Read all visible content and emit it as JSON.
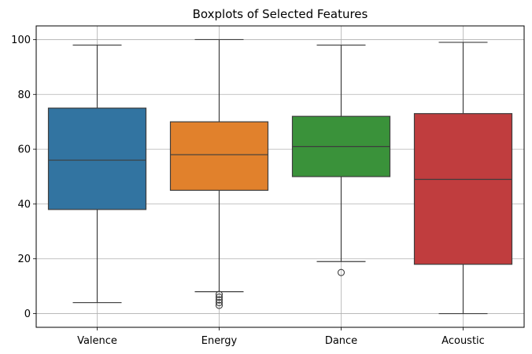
{
  "chart_data": {
    "type": "boxplot",
    "title": "Boxplots of Selected Features",
    "xlabel": "",
    "ylabel": "",
    "ylim": [
      -5,
      105
    ],
    "yticks": [
      0,
      20,
      40,
      60,
      80,
      100
    ],
    "grid": true,
    "categories": [
      "Valence",
      "Energy",
      "Dance",
      "Acoustic"
    ],
    "boxes": [
      {
        "category": "Valence",
        "min": 4,
        "q1": 38,
        "median": 56,
        "q3": 75,
        "max": 98,
        "outliers": [],
        "color": "#3274a1"
      },
      {
        "category": "Energy",
        "min": 8,
        "q1": 45,
        "median": 58,
        "q3": 70,
        "max": 100,
        "outliers": [
          7,
          6,
          5,
          4,
          3
        ],
        "color": "#e1812c"
      },
      {
        "category": "Dance",
        "min": 19,
        "q1": 50,
        "median": 61,
        "q3": 72,
        "max": 98,
        "outliers": [
          15
        ],
        "color": "#3a923a"
      },
      {
        "category": "Acoustic",
        "min": 0,
        "q1": 18,
        "median": 49,
        "q3": 73,
        "max": 99,
        "outliers": [],
        "color": "#c03d3e"
      }
    ]
  }
}
